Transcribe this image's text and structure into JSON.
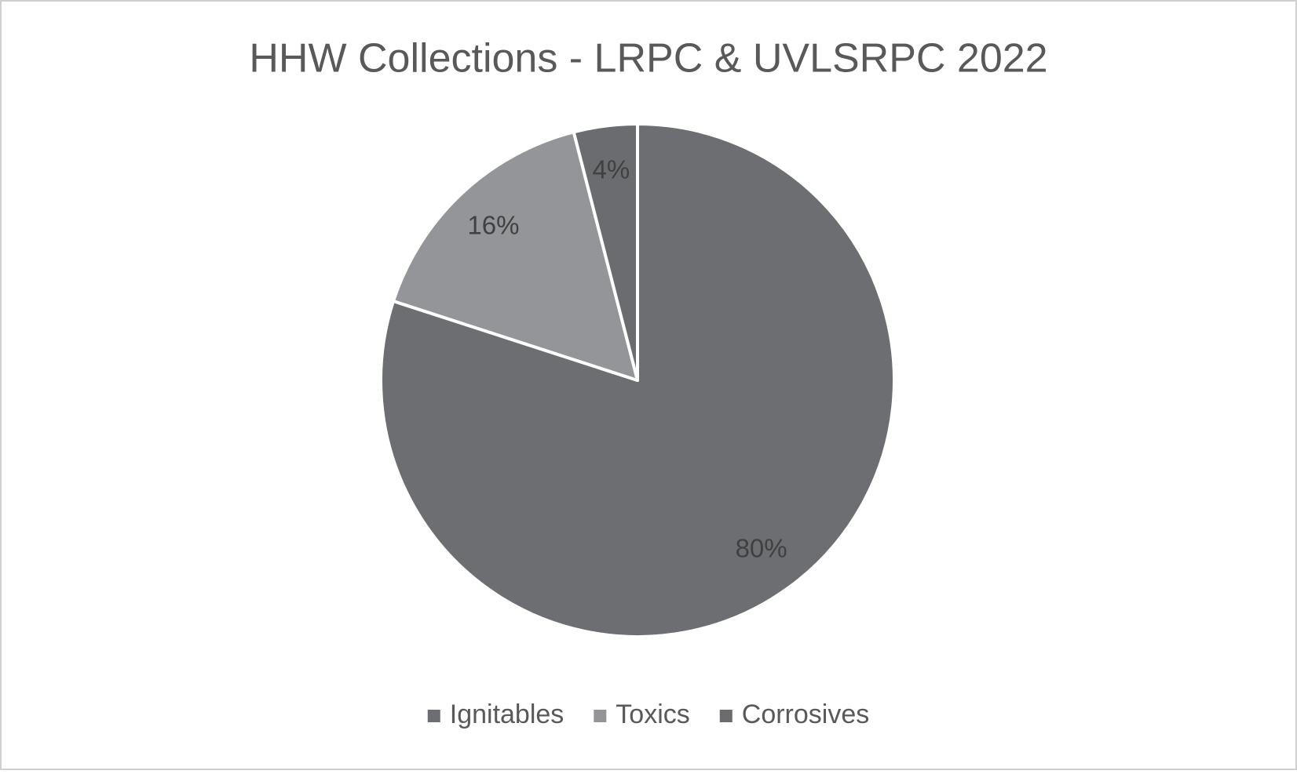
{
  "chart_data": {
    "type": "pie",
    "title": "HHW Collections - LRPC & UVLSRPC 2022",
    "categories": [
      "Ignitables",
      "Toxics",
      "Corrosives"
    ],
    "values": [
      80,
      16,
      4
    ],
    "value_labels": [
      "80%",
      "16%",
      "4%"
    ],
    "colors": [
      "#6d6e71",
      "#939598",
      "#6b6c6f"
    ],
    "legend": "bottom"
  }
}
